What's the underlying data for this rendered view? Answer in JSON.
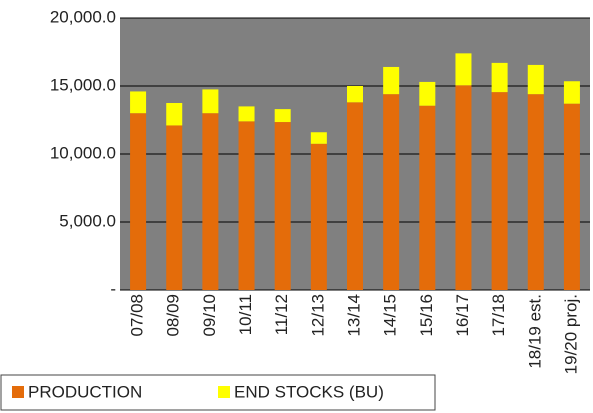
{
  "chart_data": {
    "type": "stacked-bar",
    "categories": [
      "07/08",
      "08/09",
      "09/10",
      "10/11",
      "11/12",
      "12/13",
      "13/14",
      "14/15",
      "15/16",
      "16/17",
      "17/18",
      "18/19 est.",
      "19/20 proj."
    ],
    "series": [
      {
        "name": "PRODUCTION",
        "color": "#e46c0a",
        "values": [
          13000,
          12100,
          13000,
          12400,
          12350,
          10750,
          13800,
          14400,
          13550,
          15050,
          14550,
          14400,
          13700
        ]
      },
      {
        "name": "END STOCKS (BU)",
        "color": "#ffff00",
        "values": [
          1600,
          1650,
          1750,
          1100,
          950,
          850,
          1200,
          2000,
          1750,
          2350,
          2150,
          2150,
          1650
        ]
      }
    ],
    "ylim": [
      0,
      20000
    ],
    "yticks": [
      {
        "value": 0,
        "label": "-"
      },
      {
        "value": 5000,
        "label": "5,000.0"
      },
      {
        "value": 10000,
        "label": "10,000.0"
      },
      {
        "value": 15000,
        "label": "15,000.0"
      },
      {
        "value": 20000,
        "label": "20,000.0"
      }
    ],
    "grid": true,
    "plot_background": "#808080"
  }
}
